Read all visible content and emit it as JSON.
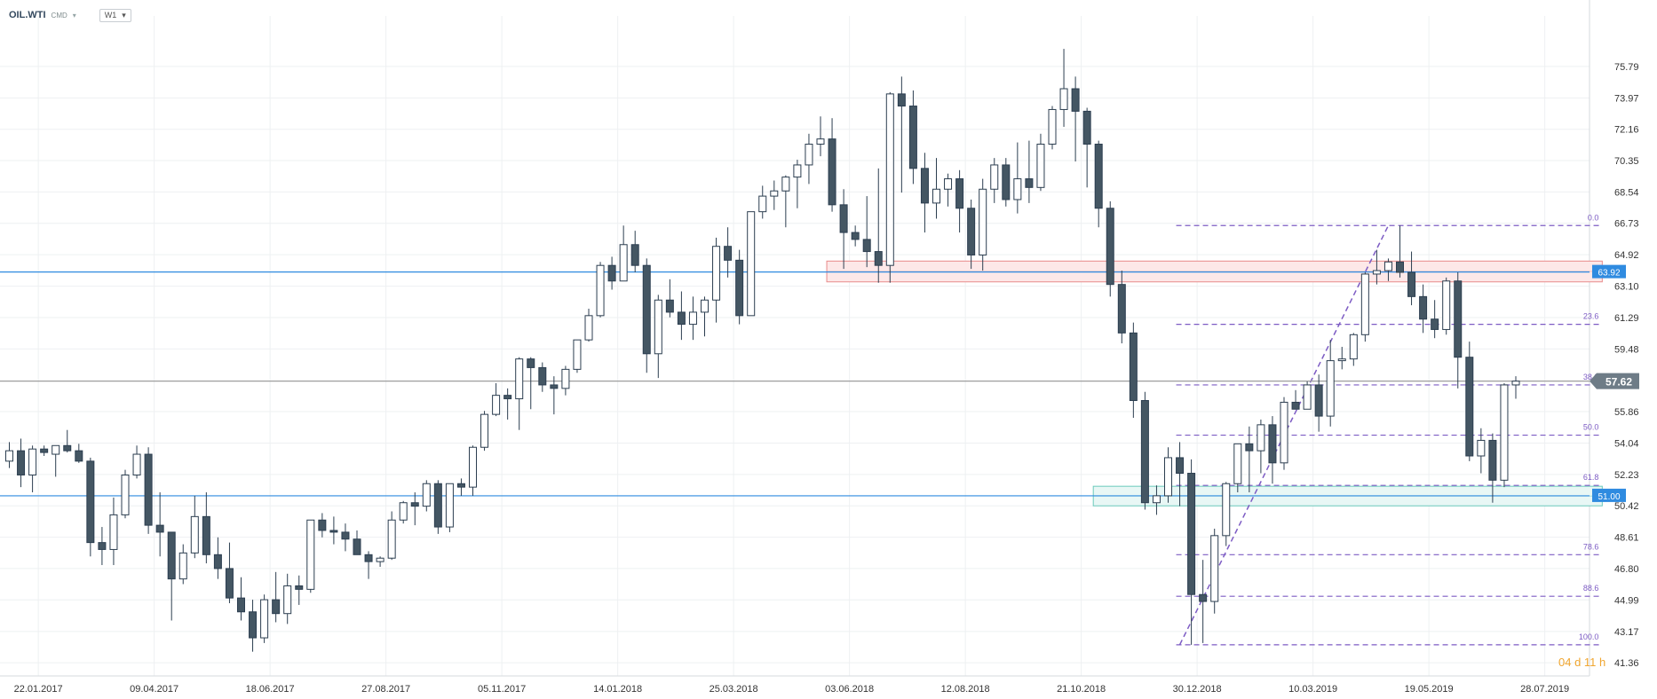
{
  "header": {
    "symbol": "OIL.WTI",
    "market": "CMD",
    "timeframe": "W1"
  },
  "timer": "04 d 11 h",
  "colors": {
    "bull_fill": "#ffffff",
    "bear_fill": "#445663",
    "candle_stroke": "#2c3e50",
    "blue_line": "#2f8be0",
    "fib": "#7d5cc4",
    "resistance_zone_fill": "#fde8e8",
    "resistance_zone_stroke": "#e88a8a",
    "support_zone_fill": "#e8f7f5",
    "support_zone_stroke": "#6ccabc",
    "grid": "#eef0f2",
    "current_price_line": "#9e9e9e",
    "current_price_tag": "#6e7c87"
  },
  "chart_data": {
    "type": "candlestick",
    "title": "",
    "ylim": [
      40.6,
      78.7
    ],
    "y_ticks": [
      41.36,
      43.17,
      44.99,
      46.8,
      48.61,
      50.42,
      52.23,
      54.04,
      55.86,
      57.62,
      59.48,
      61.29,
      63.1,
      64.92,
      66.73,
      68.54,
      70.35,
      72.16,
      73.97,
      75.79
    ],
    "x_ticks": [
      {
        "label": "22.01.2017",
        "index": 2.5
      },
      {
        "label": "09.04.2017",
        "index": 12.5
      },
      {
        "label": "18.06.2017",
        "index": 22.5
      },
      {
        "label": "27.08.2017",
        "index": 32.5
      },
      {
        "label": "05.11.2017",
        "index": 42.5
      },
      {
        "label": "14.01.2018",
        "index": 52.5
      },
      {
        "label": "25.03.2018",
        "index": 62.5
      },
      {
        "label": "03.06.2018",
        "index": 72.5
      },
      {
        "label": "12.08.2018",
        "index": 82.5
      },
      {
        "label": "21.10.2018",
        "index": 92.5
      },
      {
        "label": "30.12.2018",
        "index": 102.5
      },
      {
        "label": "10.03.2019",
        "index": 112.5
      },
      {
        "label": "19.05.2019",
        "index": 122.5
      },
      {
        "label": "28.07.2019",
        "index": 132.5
      }
    ],
    "candles": [
      [
        53.0,
        54.1,
        52.6,
        53.6
      ],
      [
        53.6,
        54.3,
        51.5,
        52.2
      ],
      [
        52.2,
        53.9,
        51.2,
        53.7
      ],
      [
        53.7,
        53.9,
        53.3,
        53.5
      ],
      [
        53.4,
        53.9,
        52.1,
        53.9
      ],
      [
        53.9,
        54.8,
        53.5,
        53.6
      ],
      [
        53.6,
        54.0,
        52.9,
        53.0
      ],
      [
        53.0,
        53.2,
        47.5,
        48.3
      ],
      [
        48.3,
        49.2,
        47.0,
        47.9
      ],
      [
        47.9,
        50.9,
        47.0,
        49.9
      ],
      [
        49.9,
        52.5,
        49.7,
        52.2
      ],
      [
        52.2,
        53.9,
        52.0,
        53.4
      ],
      [
        53.4,
        53.8,
        48.8,
        49.3
      ],
      [
        49.3,
        51.2,
        47.5,
        48.9
      ],
      [
        48.9,
        48.9,
        43.8,
        46.2
      ],
      [
        46.2,
        48.2,
        45.9,
        47.7
      ],
      [
        47.7,
        51.0,
        47.4,
        49.8
      ],
      [
        49.8,
        51.2,
        47.1,
        47.6
      ],
      [
        47.6,
        48.6,
        46.2,
        46.8
      ],
      [
        46.8,
        48.3,
        44.8,
        45.1
      ],
      [
        45.1,
        46.3,
        43.8,
        44.3
      ],
      [
        44.3,
        45.0,
        42.0,
        42.8
      ],
      [
        42.8,
        45.3,
        42.5,
        45.0
      ],
      [
        45.0,
        46.6,
        43.7,
        44.2
      ],
      [
        44.2,
        46.5,
        43.6,
        45.8
      ],
      [
        45.8,
        46.4,
        44.7,
        45.6
      ],
      [
        45.6,
        49.6,
        45.4,
        49.6
      ],
      [
        49.6,
        50.0,
        48.6,
        49.0
      ],
      [
        49.0,
        49.8,
        48.2,
        48.9
      ],
      [
        48.9,
        49.4,
        47.8,
        48.5
      ],
      [
        48.5,
        49.0,
        47.6,
        47.6
      ],
      [
        47.6,
        47.8,
        46.2,
        47.2
      ],
      [
        47.2,
        47.5,
        46.9,
        47.4
      ],
      [
        47.4,
        50.1,
        47.3,
        49.6
      ],
      [
        49.6,
        50.7,
        49.4,
        50.6
      ],
      [
        50.6,
        51.2,
        49.3,
        50.4
      ],
      [
        50.4,
        51.9,
        50.1,
        51.7
      ],
      [
        51.7,
        51.9,
        48.8,
        49.2
      ],
      [
        49.2,
        51.7,
        48.9,
        51.7
      ],
      [
        51.7,
        52.0,
        51.0,
        51.5
      ],
      [
        51.5,
        53.9,
        51.0,
        53.8
      ],
      [
        53.8,
        55.9,
        53.6,
        55.7
      ],
      [
        55.7,
        57.5,
        55.6,
        56.8
      ],
      [
        56.8,
        57.2,
        55.4,
        56.6
      ],
      [
        56.6,
        59.0,
        54.8,
        58.9
      ],
      [
        58.9,
        59.0,
        56.0,
        58.4
      ],
      [
        58.4,
        58.7,
        57.0,
        57.4
      ],
      [
        57.4,
        57.9,
        55.7,
        57.2
      ],
      [
        57.2,
        58.5,
        56.8,
        58.3
      ],
      [
        58.3,
        60.0,
        58.1,
        60.0
      ],
      [
        60.0,
        61.8,
        59.9,
        61.4
      ],
      [
        61.4,
        64.5,
        61.3,
        64.3
      ],
      [
        64.3,
        64.8,
        62.9,
        63.4
      ],
      [
        63.4,
        66.6,
        63.4,
        65.5
      ],
      [
        65.5,
        66.3,
        63.9,
        64.3
      ],
      [
        64.3,
        64.7,
        58.1,
        59.2
      ],
      [
        59.2,
        62.6,
        57.8,
        62.3
      ],
      [
        62.3,
        63.5,
        61.3,
        61.6
      ],
      [
        61.6,
        62.8,
        60.0,
        60.9
      ],
      [
        60.9,
        62.5,
        60.0,
        61.6
      ],
      [
        61.6,
        62.5,
        60.2,
        62.3
      ],
      [
        62.3,
        65.9,
        61.0,
        65.4
      ],
      [
        65.4,
        66.5,
        63.6,
        64.6
      ],
      [
        64.6,
        65.2,
        60.9,
        61.4
      ],
      [
        61.4,
        67.4,
        61.4,
        67.4
      ],
      [
        67.4,
        68.9,
        67.0,
        68.3
      ],
      [
        68.3,
        69.2,
        67.5,
        68.6
      ],
      [
        68.6,
        69.5,
        66.5,
        69.4
      ],
      [
        69.4,
        70.4,
        67.6,
        70.1
      ],
      [
        70.1,
        71.9,
        69.0,
        71.3
      ],
      [
        71.3,
        72.9,
        70.6,
        71.6
      ],
      [
        71.6,
        72.8,
        67.4,
        67.8
      ],
      [
        67.8,
        68.7,
        64.1,
        66.2
      ],
      [
        66.2,
        66.6,
        65.4,
        65.8
      ],
      [
        65.8,
        68.3,
        64.2,
        65.1
      ],
      [
        65.1,
        69.9,
        63.3,
        64.3
      ],
      [
        64.3,
        74.3,
        63.3,
        74.2
      ],
      [
        74.2,
        75.2,
        68.5,
        73.5
      ],
      [
        73.5,
        74.4,
        69.0,
        69.9
      ],
      [
        69.9,
        70.8,
        66.2,
        67.9
      ],
      [
        67.9,
        70.5,
        67.0,
        68.7
      ],
      [
        68.7,
        69.6,
        67.7,
        69.3
      ],
      [
        69.3,
        69.8,
        66.2,
        67.6
      ],
      [
        67.6,
        68.1,
        64.1,
        64.9
      ],
      [
        64.9,
        69.3,
        64.0,
        68.7
      ],
      [
        68.7,
        70.5,
        67.9,
        70.1
      ],
      [
        70.1,
        70.5,
        67.7,
        68.1
      ],
      [
        68.1,
        71.4,
        67.3,
        69.3
      ],
      [
        69.3,
        71.5,
        67.9,
        68.8
      ],
      [
        68.8,
        71.9,
        68.6,
        71.3
      ],
      [
        71.3,
        73.5,
        71.0,
        73.3
      ],
      [
        73.3,
        76.8,
        72.3,
        74.5
      ],
      [
        74.5,
        75.2,
        70.3,
        73.2
      ],
      [
        73.2,
        73.4,
        68.8,
        71.3
      ],
      [
        71.3,
        71.5,
        66.5,
        67.6
      ],
      [
        67.6,
        68.0,
        62.5,
        63.2
      ],
      [
        63.2,
        64.0,
        59.8,
        60.4
      ],
      [
        60.4,
        61.0,
        55.5,
        56.5
      ],
      [
        56.5,
        57.0,
        50.2,
        50.6
      ],
      [
        50.6,
        51.6,
        49.9,
        51.0
      ],
      [
        51.0,
        53.8,
        50.6,
        53.2
      ],
      [
        53.2,
        54.1,
        50.4,
        52.3
      ],
      [
        52.3,
        53.1,
        42.4,
        45.3
      ],
      [
        45.3,
        47.3,
        42.5,
        44.9
      ],
      [
        44.9,
        49.1,
        44.2,
        48.7
      ],
      [
        48.7,
        51.8,
        48.1,
        51.7
      ],
      [
        51.7,
        54.0,
        51.2,
        54.0
      ],
      [
        54.0,
        55.0,
        51.2,
        53.6
      ],
      [
        53.6,
        55.4,
        52.3,
        55.1
      ],
      [
        55.1,
        55.6,
        51.7,
        52.9
      ],
      [
        52.9,
        56.7,
        52.5,
        56.4
      ],
      [
        56.4,
        57.1,
        56.0,
        56.0
      ],
      [
        56.0,
        57.6,
        56.0,
        57.4
      ],
      [
        57.4,
        58.0,
        54.7,
        55.6
      ],
      [
        55.6,
        60.0,
        55.0,
        58.8
      ],
      [
        58.8,
        59.6,
        58.3,
        58.9
      ],
      [
        58.9,
        60.4,
        58.5,
        60.3
      ],
      [
        60.3,
        63.9,
        59.9,
        63.8
      ],
      [
        63.8,
        65.2,
        63.2,
        64.0
      ],
      [
        64.0,
        64.7,
        63.4,
        64.5
      ],
      [
        64.5,
        66.6,
        63.6,
        63.9
      ],
      [
        63.9,
        65.1,
        62.0,
        62.5
      ],
      [
        62.5,
        63.2,
        60.4,
        61.2
      ],
      [
        61.2,
        62.3,
        60.1,
        60.6
      ],
      [
        60.6,
        63.6,
        60.3,
        63.4
      ],
      [
        63.4,
        63.9,
        57.2,
        59.0
      ],
      [
        59.0,
        59.9,
        53.0,
        53.3
      ],
      [
        53.3,
        54.9,
        52.3,
        54.2
      ],
      [
        54.2,
        54.6,
        50.6,
        51.9
      ],
      [
        51.9,
        57.5,
        51.5,
        57.4
      ],
      [
        57.4,
        57.9,
        56.6,
        57.62
      ]
    ],
    "horizontal_lines": [
      {
        "label": "63.92",
        "value": 63.92
      },
      {
        "label": "51.00",
        "value": 51.0
      }
    ],
    "zones": [
      {
        "name": "resistance",
        "from_index": 71,
        "to_index": 137,
        "y_low": 63.35,
        "y_high": 64.55
      },
      {
        "name": "support",
        "from_index": 94,
        "to_index": 137,
        "y_low": 50.42,
        "y_high": 51.55
      }
    ],
    "fibonacci": {
      "from_index": 101,
      "to_index": 137,
      "low": 42.4,
      "high": 66.6,
      "levels": [
        {
          "label": "0.0",
          "value": 66.6
        },
        {
          "label": "23.6",
          "value": 60.9
        },
        {
          "label": "38.2",
          "value": 57.4
        },
        {
          "label": "50.0",
          "value": 54.5
        },
        {
          "label": "61.8",
          "value": 51.6
        },
        {
          "label": "78.6",
          "value": 47.6
        },
        {
          "label": "88.6",
          "value": 45.2
        },
        {
          "label": "100.0",
          "value": 42.4
        }
      ],
      "trend_from": {
        "index": 101,
        "value": 42.4
      },
      "trend_to": {
        "index": 119,
        "value": 66.6
      }
    },
    "current_price": {
      "label": "57.62",
      "value": 57.62
    }
  }
}
